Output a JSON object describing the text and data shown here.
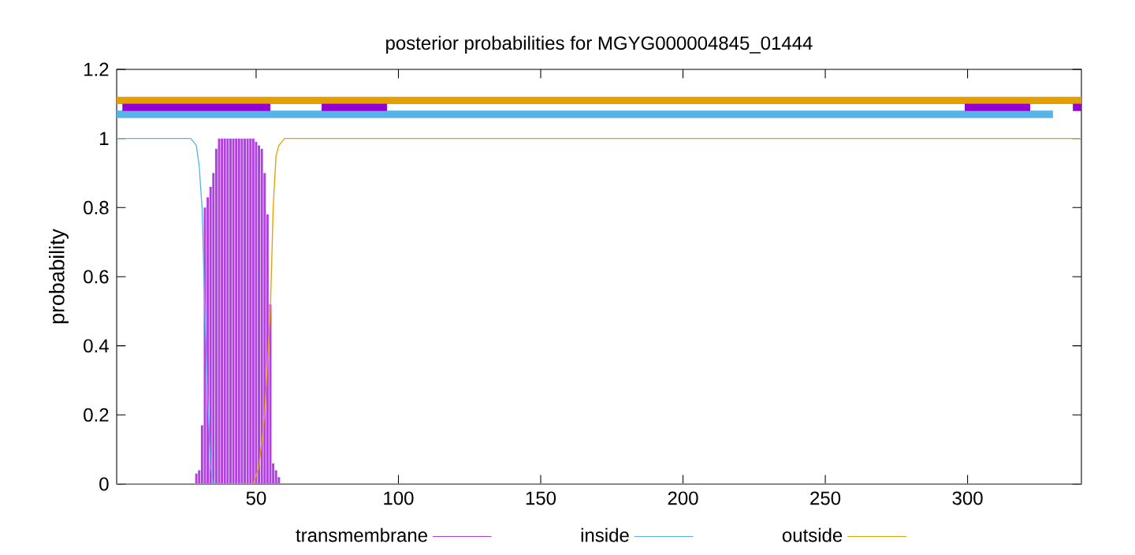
{
  "chart_data": {
    "type": "line",
    "title": "posterior probabilities for MGYG000004845_01444",
    "ylabel": "probability",
    "xlim": [
      1,
      340
    ],
    "ylim": [
      0,
      1.2
    ],
    "xticks": [
      50,
      100,
      150,
      200,
      250,
      300
    ],
    "yticks": [
      0,
      {
        "value": 0.2,
        "label": "0.2"
      },
      {
        "value": 0.4,
        "label": "0.4"
      },
      {
        "value": 0.6,
        "label": "0.6"
      },
      {
        "value": 0.8,
        "label": "0.8"
      },
      1,
      {
        "value": 1.2,
        "label": "1.2"
      }
    ],
    "legend": "bottom",
    "grid": false,
    "series": [
      {
        "name": "transmembrane",
        "type": "bar",
        "color": "#b040e0",
        "x": [
          29,
          30,
          31,
          32,
          33,
          34,
          35,
          36,
          37,
          38,
          39,
          40,
          41,
          42,
          43,
          44,
          45,
          46,
          47,
          48,
          49,
          50,
          51,
          52,
          53,
          54,
          55,
          56,
          57,
          58
        ],
        "values": [
          0.03,
          0.04,
          0.17,
          0.8,
          0.83,
          0.86,
          0.9,
          0.97,
          1,
          1,
          1,
          1,
          1,
          1,
          1,
          1,
          1,
          1,
          1,
          1,
          1,
          0.99,
          0.98,
          0.97,
          0.9,
          0.78,
          0.52,
          0.06,
          0.04,
          0.02
        ]
      },
      {
        "name": "inside",
        "color": "#56b4e9",
        "x": [
          1,
          27,
          29,
          30,
          31,
          32,
          33,
          34,
          35,
          340
        ],
        "values": [
          1,
          1,
          0.98,
          0.92,
          0.8,
          0.5,
          0.25,
          0.05,
          0,
          0
        ]
      },
      {
        "name": "outside",
        "color": "#e69f00",
        "x": [
          1,
          49,
          51,
          53,
          54,
          55,
          56,
          57,
          58,
          60,
          340
        ],
        "values": [
          0,
          0,
          0.05,
          0.2,
          0.35,
          0.5,
          0.8,
          0.95,
          0.98,
          1,
          1
        ]
      },
      {
        "color": "#e69f00",
        "x": [
          1,
          340
        ],
        "values": [
          1.11,
          1.11
        ]
      },
      {
        "color": "#56b4e9",
        "x": [
          1,
          330
        ],
        "values": [
          1.07,
          1.07
        ]
      },
      {
        "color": "#9400d3",
        "x": [
          3,
          55,
          64,
          73,
          96,
          200,
          299,
          322,
          330,
          337,
          340
        ],
        "values": [
          1.09,
          1.09,
          null,
          1.09,
          1.09,
          null,
          1.09,
          1.09,
          null,
          1.09,
          1.09
        ]
      }
    ]
  }
}
